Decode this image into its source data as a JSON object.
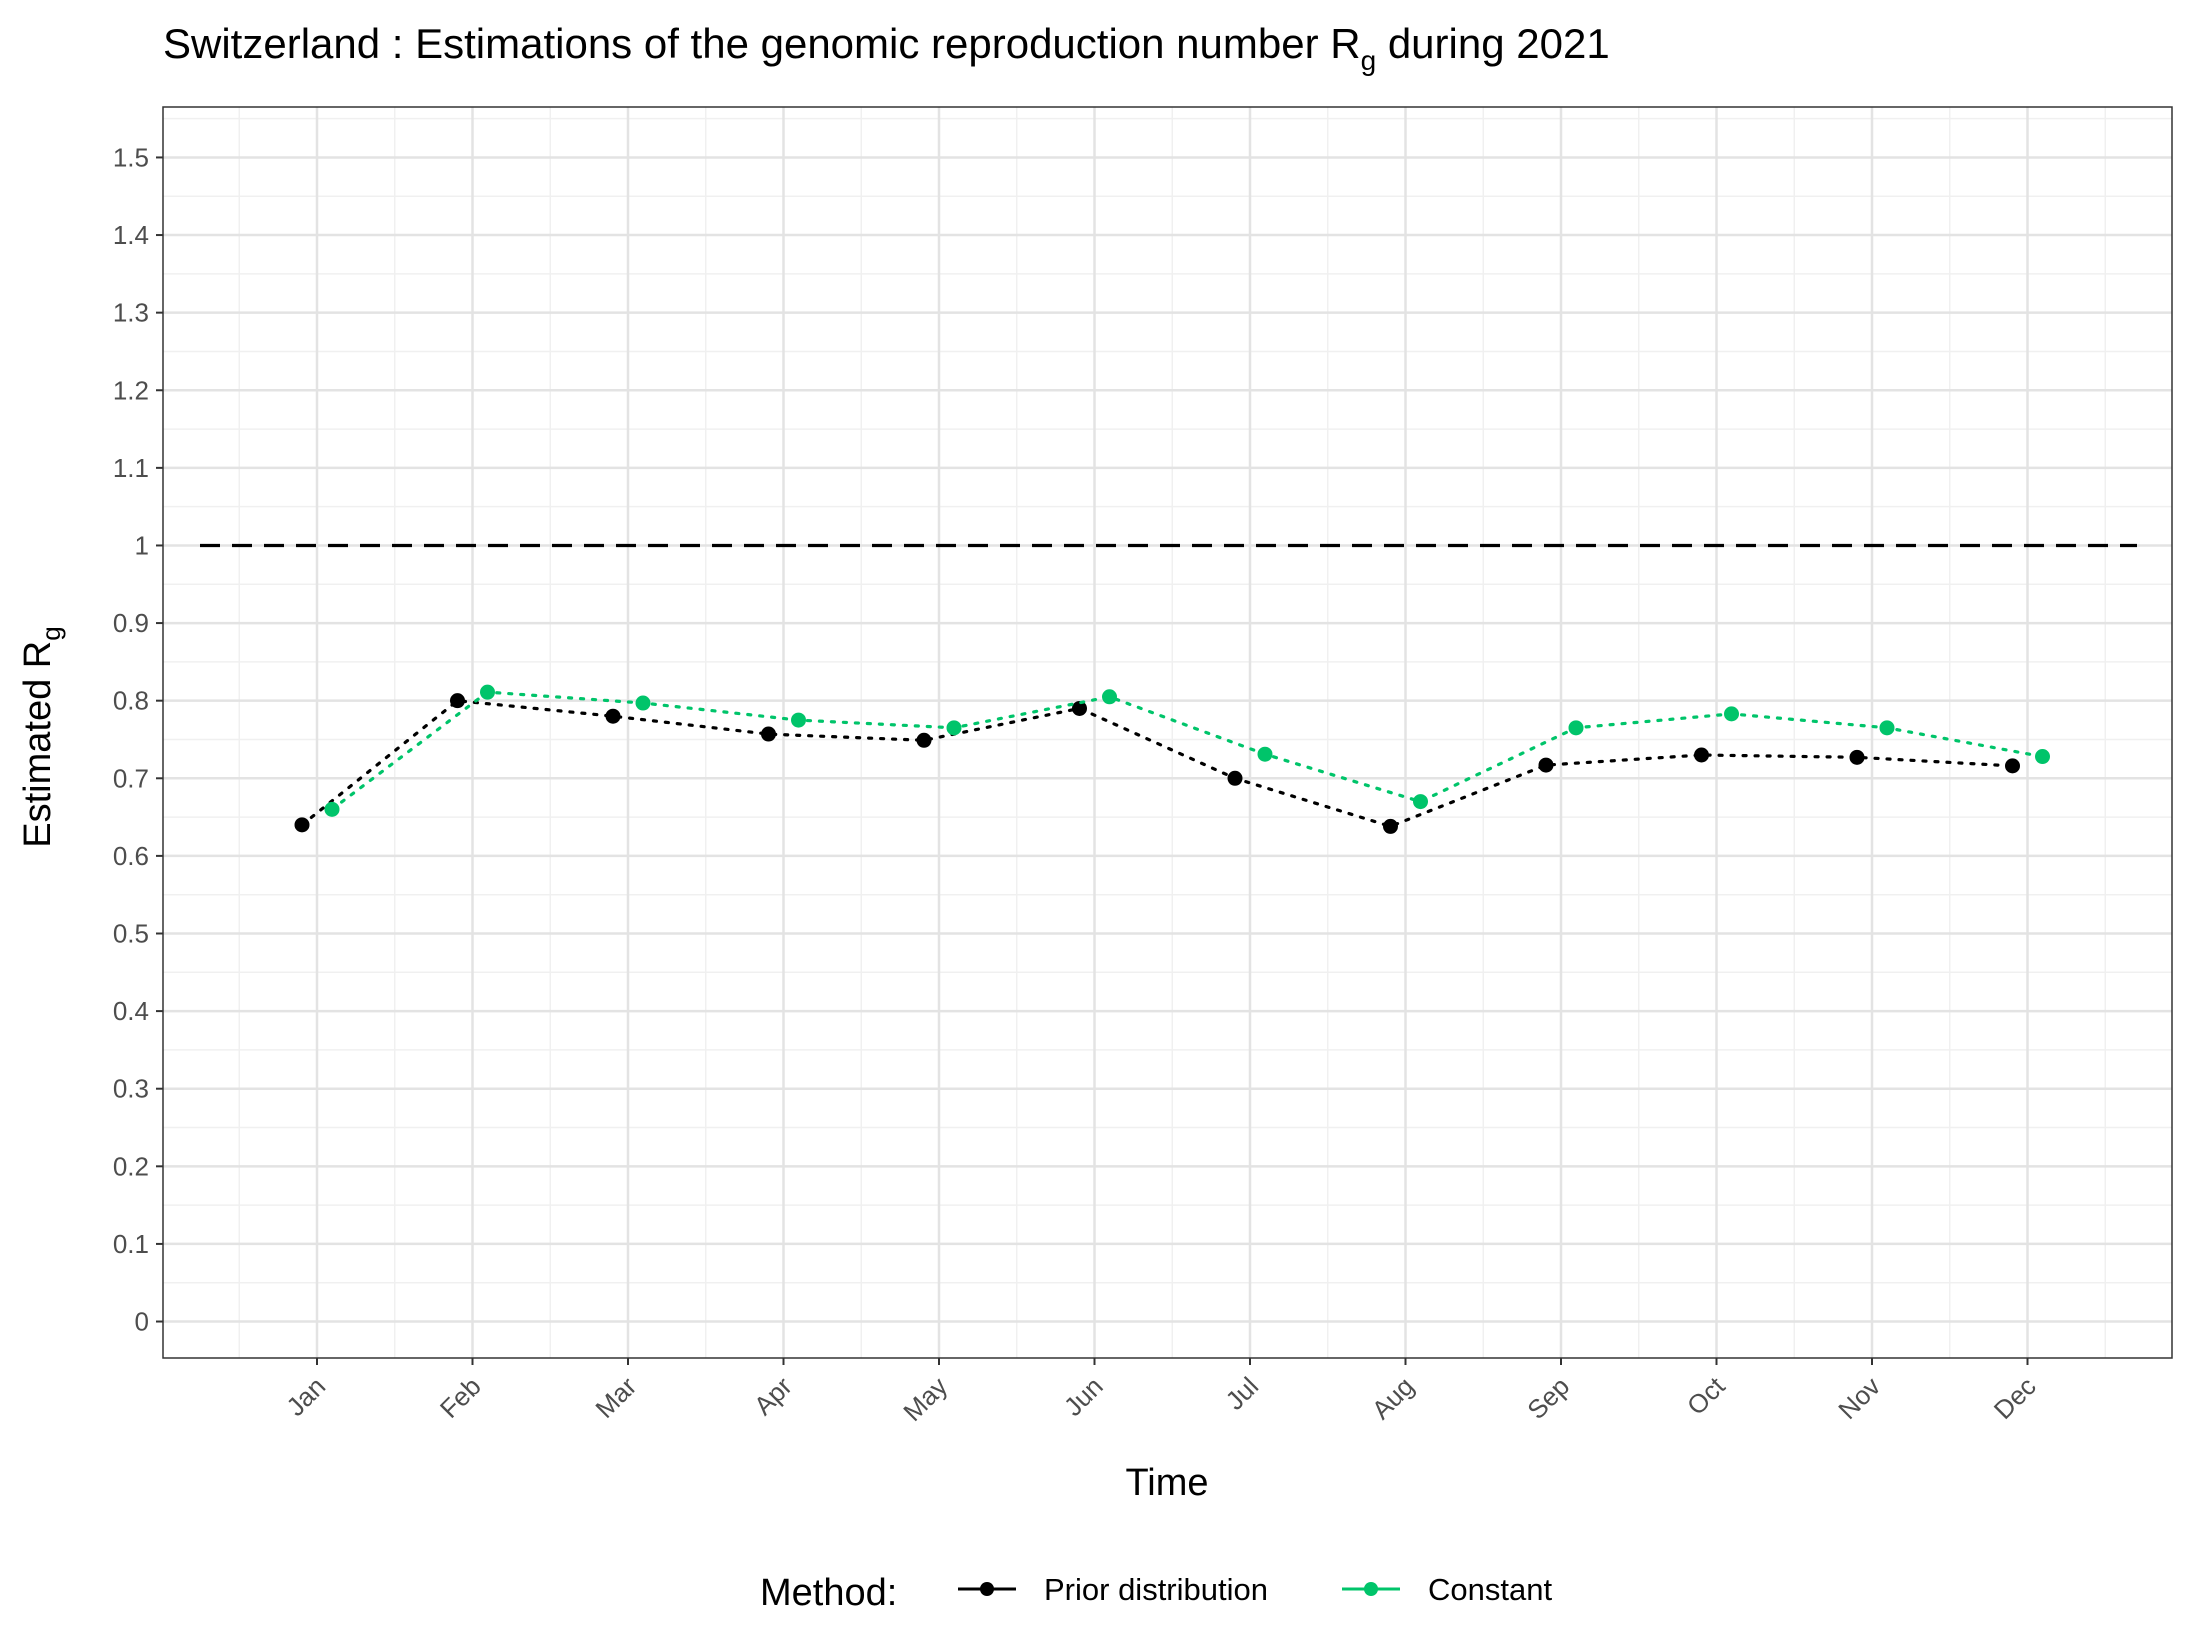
{
  "chart_data": {
    "type": "line",
    "title": {
      "main": "Switzerland : Estimations of the genomic reproduction number R",
      "sub": "g",
      "tail": " during 2021"
    },
    "xlabel": "Time",
    "ylabel": {
      "main": "Estimated R",
      "sub": "g"
    },
    "categories": [
      "Jan",
      "Feb",
      "Mar",
      "Apr",
      "May",
      "Jun",
      "Jul",
      "Aug",
      "Sep",
      "Oct",
      "Nov",
      "Dec"
    ],
    "y_ticks": [
      "0",
      "0.1",
      "0.2",
      "0.3",
      "0.4",
      "0.5",
      "0.6",
      "0.7",
      "0.8",
      "0.9",
      "1",
      "1.1",
      "1.2",
      "1.3",
      "1.4",
      "1.5"
    ],
    "ylim": [
      -0.047,
      1.565
    ],
    "grid": true,
    "legend_position": "bottom",
    "legend_title": "Method:",
    "reference_line": {
      "y": 1,
      "style": "dashed",
      "color": "#000000"
    },
    "series": [
      {
        "name": "Prior distribution",
        "color": "#000000",
        "values": [
          0.64,
          0.8,
          0.78,
          0.757,
          0.749,
          0.79,
          0.7,
          0.638,
          0.717,
          0.73,
          0.727,
          0.716
        ]
      },
      {
        "name": "Constant",
        "color": "#00C46A",
        "values": [
          0.66,
          0.811,
          0.797,
          0.775,
          0.765,
          0.805,
          0.731,
          0.67,
          0.765,
          0.783,
          0.765,
          0.728
        ]
      }
    ]
  }
}
